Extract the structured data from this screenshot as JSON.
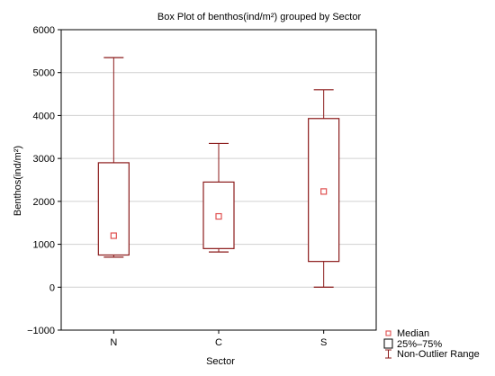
{
  "chart_data": {
    "type": "boxplot",
    "title": "Box Plot of benthos(ind/m²) grouped by  Sector",
    "xlabel": "Sector",
    "ylabel": "Benthos(ind/m²)",
    "categories": [
      "N",
      "C",
      "S"
    ],
    "ylim": [
      -1000,
      6000
    ],
    "yticks": [
      -1000,
      0,
      1000,
      2000,
      3000,
      4000,
      5000,
      6000
    ],
    "ytick_labels": [
      "−1000",
      "0",
      "1000",
      "2000",
      "3000",
      "4000",
      "5000",
      "6000"
    ],
    "grid": true,
    "legend_position": "bottom-right",
    "boxes": [
      {
        "category": "N",
        "min": 700,
        "q1": 750,
        "median": 1200,
        "q3": 2900,
        "max": 5350
      },
      {
        "category": "C",
        "min": 820,
        "q1": 900,
        "median": 1650,
        "q3": 2450,
        "max": 3350
      },
      {
        "category": "S",
        "min": 0,
        "q1": 600,
        "median": 2230,
        "q3": 3930,
        "max": 4600
      }
    ],
    "legend": [
      {
        "symbol": "median",
        "label": "Median"
      },
      {
        "symbol": "box",
        "label": "25%–75%"
      },
      {
        "symbol": "whisker",
        "label": "Non-Outlier Range"
      }
    ],
    "colors": {
      "box": "#8b1a1a",
      "median": "#e05050",
      "grid": "#d0d0d0",
      "plot_bg": "#ffffff",
      "frame": "#000000"
    }
  }
}
